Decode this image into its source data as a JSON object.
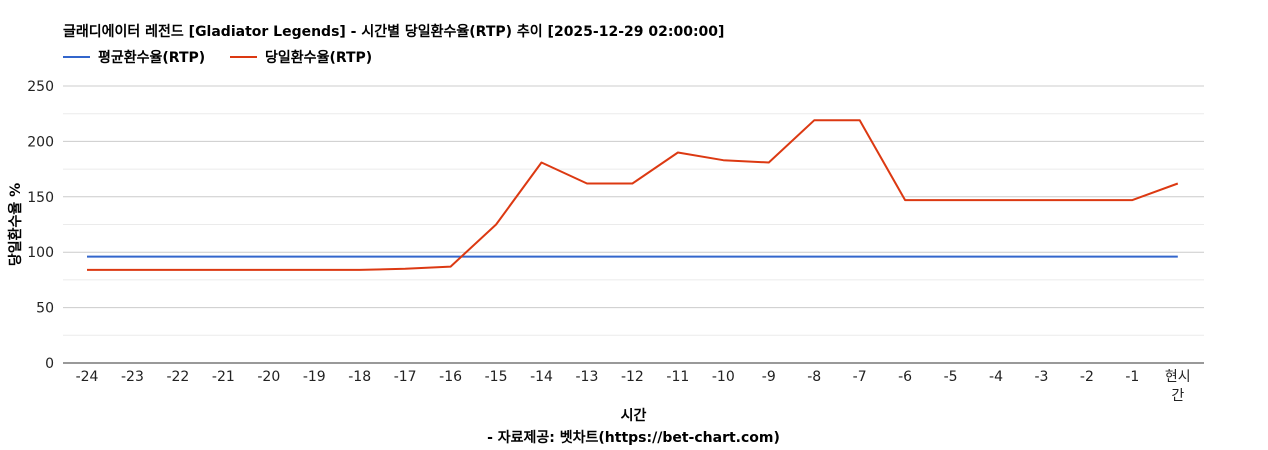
{
  "chart_data": {
    "type": "line",
    "title": "글래디에이터 레전드 [Gladiator Legends] - 시간별 당일환수율(RTP) 추이 [2025-12-29 02:00:00]",
    "xlabel": "시간",
    "ylabel": "당일환수율 %",
    "source": "- 자료제공: 벳차트(https://bet-chart.com)",
    "categories": [
      "-24",
      "-23",
      "-22",
      "-21",
      "-20",
      "-19",
      "-18",
      "-17",
      "-16",
      "-15",
      "-14",
      "-13",
      "-12",
      "-11",
      "-10",
      "-9",
      "-8",
      "-7",
      "-6",
      "-5",
      "-4",
      "-3",
      "-2",
      "-1",
      "현시간"
    ],
    "ylim": [
      0,
      250
    ],
    "yticks": [
      0,
      50,
      100,
      150,
      200,
      250
    ],
    "grid": true,
    "legend_position": "top-left",
    "series": [
      {
        "name": "평균환수율(RTP)",
        "color": "#3366cc",
        "values": [
          96,
          96,
          96,
          96,
          96,
          96,
          96,
          96,
          96,
          96,
          96,
          96,
          96,
          96,
          96,
          96,
          96,
          96,
          96,
          96,
          96,
          96,
          96,
          96,
          96
        ]
      },
      {
        "name": "당일환수율(RTP)",
        "color": "#dc3912",
        "values": [
          84,
          84,
          84,
          84,
          84,
          84,
          84,
          85,
          87,
          125,
          181,
          162,
          162,
          190,
          183,
          181,
          219,
          219,
          147,
          147,
          147,
          147,
          147,
          147,
          162
        ]
      }
    ]
  }
}
